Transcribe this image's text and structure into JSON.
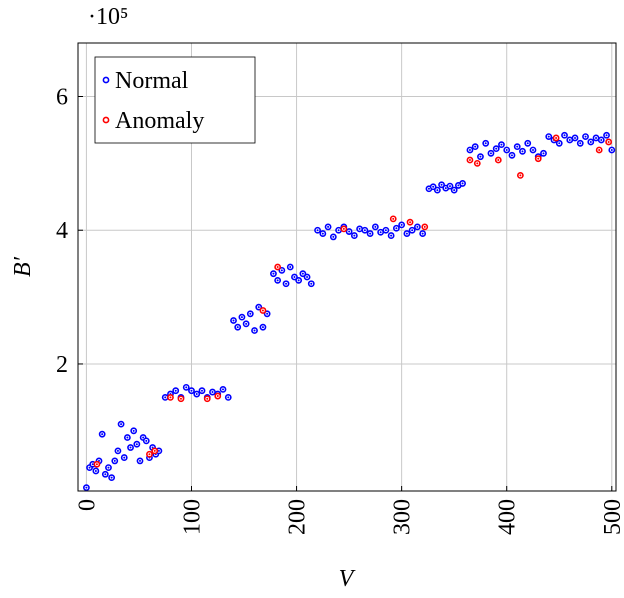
{
  "chart_data": {
    "type": "scatter",
    "x_label": "V",
    "y_label": "B′",
    "y_multiplier": "·10⁵",
    "xlim": [
      -8,
      504
    ],
    "ylim": [
      0.1,
      6.8
    ],
    "xticks": [
      0,
      100,
      200,
      300,
      400,
      500
    ],
    "yticks": [
      2,
      4,
      6
    ],
    "grid": true,
    "legend": "upper left",
    "series": [
      {
        "name": "Normal",
        "color": "#0000ff",
        "x": [
          0,
          3,
          6,
          9,
          12,
          15,
          18,
          21,
          24,
          27,
          30,
          33,
          36,
          39,
          42,
          45,
          48,
          51,
          54,
          57,
          60,
          63,
          66,
          69,
          75,
          80,
          85,
          90,
          95,
          100,
          105,
          110,
          115,
          120,
          125,
          130,
          135,
          140,
          144,
          148,
          152,
          156,
          160,
          164,
          168,
          172,
          178,
          182,
          186,
          190,
          194,
          198,
          202,
          206,
          210,
          214,
          220,
          225,
          230,
          235,
          240,
          245,
          250,
          255,
          260,
          265,
          270,
          275,
          280,
          285,
          290,
          295,
          300,
          305,
          310,
          315,
          320,
          326,
          330,
          334,
          338,
          342,
          346,
          350,
          354,
          358,
          365,
          370,
          375,
          380,
          385,
          390,
          395,
          400,
          405,
          410,
          415,
          420,
          425,
          430,
          435,
          440,
          445,
          450,
          455,
          460,
          465,
          470,
          475,
          480,
          485,
          490,
          495,
          500
        ],
        "values": [
          0.15,
          0.45,
          0.5,
          0.4,
          0.55,
          0.95,
          0.35,
          0.45,
          0.3,
          0.55,
          0.7,
          1.1,
          0.6,
          0.9,
          0.75,
          1.0,
          0.8,
          0.55,
          0.9,
          0.85,
          0.6,
          0.75,
          0.65,
          0.7,
          1.5,
          1.55,
          1.6,
          1.5,
          1.65,
          1.6,
          1.55,
          1.6,
          1.5,
          1.58,
          1.55,
          1.62,
          1.5,
          2.65,
          2.55,
          2.7,
          2.6,
          2.75,
          2.5,
          2.85,
          2.55,
          2.75,
          3.35,
          3.25,
          3.4,
          3.2,
          3.45,
          3.3,
          3.25,
          3.35,
          3.3,
          3.2,
          4.0,
          3.95,
          4.05,
          3.9,
          4.0,
          4.05,
          3.98,
          3.92,
          4.02,
          4.0,
          3.95,
          4.05,
          3.97,
          4.0,
          3.92,
          4.03,
          4.08,
          3.95,
          4.0,
          4.05,
          3.95,
          4.62,
          4.65,
          4.6,
          4.68,
          4.63,
          4.66,
          4.6,
          4.67,
          4.7,
          5.2,
          5.25,
          5.1,
          5.3,
          5.15,
          5.22,
          5.28,
          5.2,
          5.12,
          5.25,
          5.18,
          5.3,
          5.2,
          5.1,
          5.15,
          5.4,
          5.35,
          5.3,
          5.42,
          5.35,
          5.38,
          5.3,
          5.4,
          5.32,
          5.38,
          5.35,
          5.42,
          5.2
        ]
      },
      {
        "name": "Anomaly",
        "color": "#ff0000",
        "x": [
          10,
          60,
          65,
          80,
          90,
          115,
          125,
          168,
          182,
          245,
          292,
          308,
          322,
          365,
          372,
          392,
          413,
          430,
          447,
          488,
          497
        ],
        "values": [
          0.5,
          0.65,
          0.7,
          1.5,
          1.48,
          1.48,
          1.52,
          2.8,
          3.45,
          4.02,
          4.17,
          4.12,
          4.05,
          5.05,
          5.0,
          5.05,
          4.82,
          5.07,
          5.38,
          5.2,
          5.32
        ]
      }
    ]
  }
}
